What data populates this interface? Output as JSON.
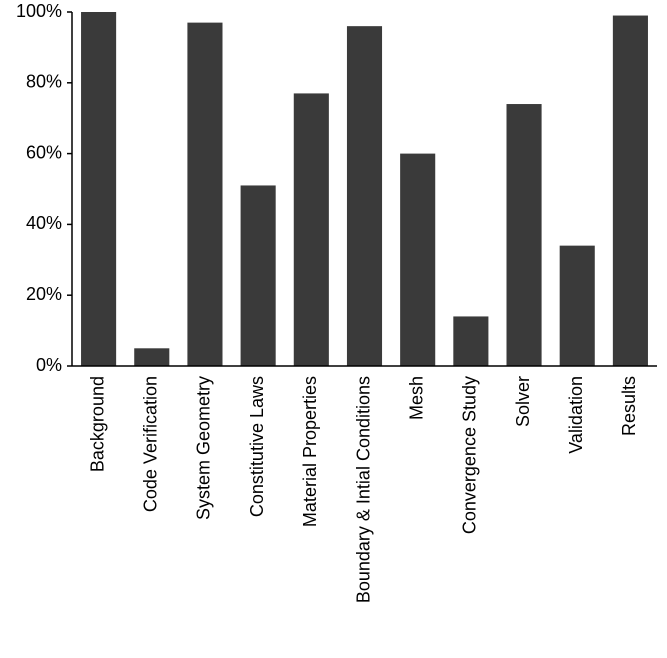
{
  "chart_data": {
    "type": "bar",
    "categories": [
      "Background",
      "Code Verification",
      "System Geometry",
      "Constitutive Laws",
      "Material Properties",
      "Boundary & Intial Conditions",
      "Mesh",
      "Convergence Study",
      "Solver",
      "Validation",
      "Results"
    ],
    "values": [
      100,
      5,
      97,
      51,
      77,
      96,
      60,
      14,
      74,
      34,
      99
    ],
    "color": "#3a3a3a",
    "ylim": [
      0,
      100
    ],
    "yticks": [
      {
        "value": 0,
        "label": "0%"
      },
      {
        "value": 20,
        "label": "20%"
      },
      {
        "value": 40,
        "label": "40%"
      },
      {
        "value": 60,
        "label": "60%"
      },
      {
        "value": 80,
        "label": "80%"
      },
      {
        "value": 100,
        "label": "100%"
      }
    ],
    "grid": false
  }
}
